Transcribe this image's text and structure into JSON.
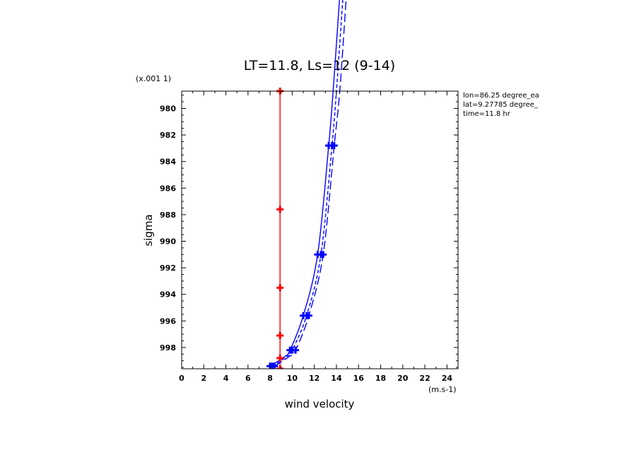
{
  "chart_data": {
    "type": "line",
    "title": "LT=11.8, Ls=12 (9-14)",
    "xlabel": "wind velocity",
    "ylabel": "sigma",
    "x_units": "(m.s-1)",
    "y_scale_note": "(x.001 1)",
    "xlim": [
      0,
      25
    ],
    "ylim": [
      999.6,
      978.7
    ],
    "x_ticks": [
      0,
      2,
      4,
      6,
      8,
      10,
      12,
      14,
      16,
      18,
      20,
      22,
      24
    ],
    "y_ticks": [
      980,
      982,
      984,
      986,
      988,
      990,
      992,
      994,
      996,
      998
    ],
    "info_lines": [
      "lon=86.25 degree_ea",
      "lat=9.27785 degree_",
      "time=11.8 hr"
    ],
    "series": [
      {
        "style": "solid",
        "color": "#ff0000",
        "points": [
          [
            8.9,
            978.7
          ],
          [
            8.9,
            987.6
          ],
          [
            8.9,
            993.5
          ],
          [
            8.9,
            997.1
          ],
          [
            8.9,
            998.8
          ],
          [
            8.9,
            999.6
          ]
        ],
        "markers": [
          [
            8.9,
            978.7
          ],
          [
            8.9,
            987.6
          ],
          [
            8.9,
            993.5
          ],
          [
            8.9,
            997.1
          ],
          [
            8.9,
            998.8
          ],
          [
            8.9,
            999.6
          ]
        ]
      },
      {
        "style": "solid",
        "color": "#0000ff",
        "points": [
          [
            8.0,
            999.4
          ],
          [
            9.3,
            998.7
          ],
          [
            9.8,
            998.2
          ],
          [
            11.0,
            995.6
          ],
          [
            12.3,
            991.0
          ],
          [
            13.3,
            982.8
          ],
          [
            13.7,
            978.7
          ],
          [
            14.3,
            971.5
          ]
        ],
        "markers": [
          [
            8.0,
            999.4
          ],
          [
            9.8,
            998.2
          ],
          [
            11.0,
            995.6
          ],
          [
            12.3,
            991.0
          ],
          [
            13.3,
            982.8
          ]
        ]
      },
      {
        "style": "dashed",
        "color": "#0000ff",
        "points": [
          [
            8.2,
            999.4
          ],
          [
            9.5,
            998.7
          ],
          [
            10.0,
            998.2
          ],
          [
            11.3,
            995.6
          ],
          [
            12.6,
            991.0
          ],
          [
            13.6,
            982.8
          ],
          [
            14.0,
            978.7
          ],
          [
            14.6,
            971.5
          ]
        ],
        "markers": [
          [
            8.2,
            999.4
          ],
          [
            10.0,
            998.2
          ],
          [
            11.3,
            995.6
          ],
          [
            12.6,
            991.0
          ],
          [
            13.6,
            982.8
          ]
        ]
      },
      {
        "style": "longdash",
        "color": "#0000ff",
        "points": [
          [
            8.4,
            999.4
          ],
          [
            9.7,
            998.7
          ],
          [
            10.3,
            998.2
          ],
          [
            11.5,
            995.6
          ],
          [
            12.8,
            991.0
          ],
          [
            13.8,
            982.8
          ],
          [
            14.3,
            978.7
          ],
          [
            14.9,
            971.5
          ]
        ],
        "markers": [
          [
            8.4,
            999.4
          ],
          [
            10.3,
            998.2
          ],
          [
            11.5,
            995.6
          ],
          [
            12.8,
            991.0
          ],
          [
            13.8,
            982.8
          ]
        ]
      }
    ],
    "grid": false,
    "legend": "none"
  }
}
